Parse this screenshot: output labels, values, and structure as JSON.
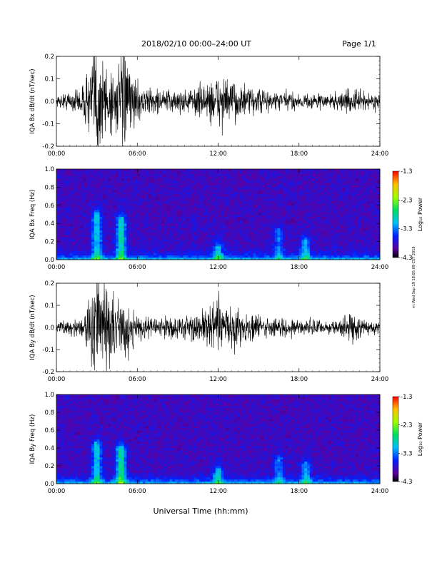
{
  "header": {
    "title": "2018/02/10  00:00–24:00 UT",
    "page": "Page 1/1"
  },
  "footer": {
    "xlabel": "Universal Time (hh:mm)",
    "side_stamp": "rrt Wed Sep 19 18:05:09 CST 2018"
  },
  "colorbar": {
    "label": "Log₁₀ Power",
    "ticks": [
      "-1.3",
      "-2.3",
      "-3.3",
      "-4.3"
    ]
  },
  "chart_data": [
    {
      "type": "line",
      "title": "",
      "ylabel": "IQA Bx dB/dt (nT/sec)",
      "xlabel": "",
      "x_ticks": [
        "00:00",
        "06:00",
        "12:00",
        "18:00",
        "24:00"
      ],
      "y_ticks": [
        "0.2",
        "0.1",
        "0.0",
        "-0.1",
        "-0.2"
      ],
      "xlim": [
        0,
        24
      ],
      "ylim": [
        -0.2,
        0.2
      ],
      "envelope": {
        "hours": [
          0,
          1,
          2,
          2.6,
          3,
          3.4,
          4,
          4.5,
          5,
          5.5,
          6,
          7,
          8,
          9,
          10,
          11,
          11.5,
          12,
          12.5,
          13,
          14,
          15,
          16,
          17,
          18,
          19,
          20,
          21,
          22,
          23,
          24
        ],
        "amplitude": [
          0.02,
          0.04,
          0.06,
          0.18,
          0.25,
          0.2,
          0.14,
          0.12,
          0.2,
          0.12,
          0.07,
          0.05,
          0.045,
          0.045,
          0.05,
          0.07,
          0.09,
          0.1,
          0.095,
          0.08,
          0.06,
          0.05,
          0.04,
          0.04,
          0.03,
          0.03,
          0.03,
          0.035,
          0.05,
          0.035,
          0.03
        ]
      }
    },
    {
      "type": "heatmap",
      "title": "",
      "ylabel": "IQA Bx Freq (Hz)",
      "x_ticks": [
        "00:00",
        "06:00",
        "12:00",
        "18:00",
        "24:00"
      ],
      "y_ticks": [
        "1.0",
        "0.8",
        "0.6",
        "0.4",
        "0.2",
        "0.0"
      ],
      "xlim": [
        0,
        24
      ],
      "ylim": [
        0,
        1.0
      ],
      "zlim": [
        -4.3,
        -1.3
      ],
      "zlabel": "Log₁₀ Power",
      "features": [
        {
          "hour": 3.0,
          "freq_max": 0.5,
          "log_power": -2.8
        },
        {
          "hour": 4.8,
          "freq_max": 0.45,
          "log_power": -2.6
        },
        {
          "hour": 12.0,
          "freq_max": 0.15,
          "log_power": -2.9
        },
        {
          "hour": 16.5,
          "freq_max": 0.32,
          "log_power": -3.2
        },
        {
          "hour": 18.5,
          "freq_max": 0.22,
          "log_power": -3.0
        }
      ]
    },
    {
      "type": "line",
      "title": "",
      "ylabel": "IQA By dB/dt (nT/sec)",
      "xlabel": "",
      "x_ticks": [
        "00:00",
        "06:00",
        "12:00",
        "18:00",
        "24:00"
      ],
      "y_ticks": [
        "0.2",
        "0.1",
        "0.0",
        "-0.1",
        "-0.2"
      ],
      "xlim": [
        0,
        24
      ],
      "ylim": [
        -0.2,
        0.2
      ],
      "envelope": {
        "hours": [
          0,
          1,
          2,
          2.6,
          3,
          3.4,
          4,
          4.5,
          5,
          5.5,
          6,
          7,
          8,
          9,
          10,
          11,
          11.5,
          12,
          12.5,
          13,
          14,
          15,
          16,
          17,
          18,
          19,
          20,
          21,
          22,
          23,
          24
        ],
        "amplitude": [
          0.02,
          0.03,
          0.05,
          0.15,
          0.25,
          0.2,
          0.12,
          0.1,
          0.12,
          0.1,
          0.06,
          0.04,
          0.04,
          0.045,
          0.05,
          0.08,
          0.1,
          0.11,
          0.1,
          0.085,
          0.065,
          0.05,
          0.04,
          0.035,
          0.03,
          0.03,
          0.03,
          0.035,
          0.06,
          0.03,
          0.025
        ]
      }
    },
    {
      "type": "heatmap",
      "title": "",
      "ylabel": "IQA By Freq (Hz)",
      "x_ticks": [
        "00:00",
        "06:00",
        "12:00",
        "18:00",
        "24:00"
      ],
      "y_ticks": [
        "1.0",
        "0.8",
        "0.6",
        "0.4",
        "0.2",
        "0.0"
      ],
      "xlim": [
        0,
        24
      ],
      "ylim": [
        0,
        1.0
      ],
      "zlim": [
        -4.3,
        -1.3
      ],
      "zlabel": "Log₁₀ Power",
      "features": [
        {
          "hour": 3.0,
          "freq_max": 0.45,
          "log_power": -2.8
        },
        {
          "hour": 4.8,
          "freq_max": 0.4,
          "log_power": -2.5
        },
        {
          "hour": 12.0,
          "freq_max": 0.15,
          "log_power": -2.9
        },
        {
          "hour": 16.5,
          "freq_max": 0.3,
          "log_power": -3.2
        },
        {
          "hour": 18.5,
          "freq_max": 0.22,
          "log_power": -3.0
        }
      ]
    }
  ]
}
